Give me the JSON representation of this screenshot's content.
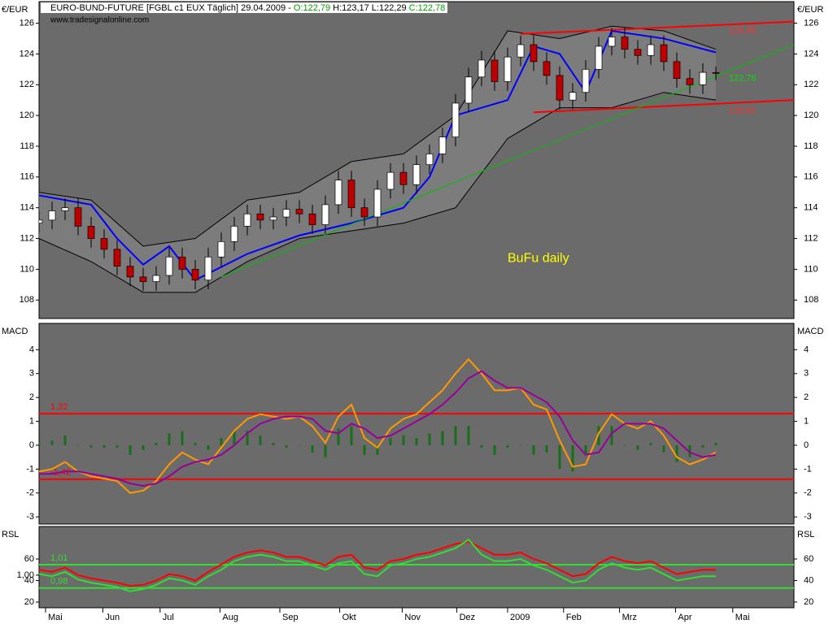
{
  "chart_data": [
    {
      "type": "candlestick",
      "title": "EURO-BUND-FUTURE [FGBL c1 EUX  Täglich] 29.04.2009 -",
      "ohlc_labels": [
        {
          "text": "O:122,79",
          "color": "#00a000"
        },
        {
          "text": "H:123,17",
          "color": "#000000"
        },
        {
          "text": "L:122,29",
          "color": "#000000"
        },
        {
          "text": "C:122,78",
          "color": "#00a000"
        }
      ],
      "subtitle": "www.tradesignalonline.com",
      "ylabel": "€/EUR",
      "xlim": [
        0,
        58
      ],
      "ylim": [
        106.8,
        127.4
      ],
      "yticks": [
        108,
        110,
        112,
        114,
        116,
        118,
        120,
        122,
        124,
        126
      ],
      "up_color": "#ffffff",
      "down_color": "#c00000",
      "x": [
        0,
        1,
        2,
        3,
        4,
        5,
        6,
        7,
        8,
        9,
        10,
        11,
        12,
        13,
        14,
        15,
        16,
        17,
        18,
        19,
        20,
        21,
        22,
        23,
        24,
        25,
        26,
        27,
        28,
        29,
        30,
        31,
        32,
        33,
        34,
        35,
        36,
        37,
        38,
        39,
        40,
        41,
        42,
        43,
        44,
        45,
        46,
        47,
        48,
        49,
        50,
        51,
        52
      ],
      "open": [
        113.0,
        113.2,
        113.8,
        114.0,
        112.8,
        112.0,
        111.3,
        110.2,
        109.5,
        109.2,
        109.6,
        110.8,
        110.0,
        109.3,
        110.8,
        111.8,
        112.8,
        113.6,
        113.2,
        113.4,
        113.9,
        113.6,
        112.9,
        114.2,
        115.8,
        114.0,
        113.4,
        115.2,
        116.3,
        115.5,
        116.8,
        117.5,
        118.6,
        120.8,
        122.5,
        123.6,
        122.2,
        123.8,
        124.6,
        123.5,
        122.6,
        121.0,
        121.5,
        123.0,
        124.5,
        125.1,
        124.3,
        123.9,
        124.6,
        123.5,
        122.4,
        122.0,
        122.79
      ],
      "high": [
        113.8,
        114.4,
        114.6,
        114.6,
        113.4,
        112.6,
        111.9,
        110.8,
        110.1,
        110.2,
        111.4,
        111.4,
        110.6,
        111.4,
        112.4,
        113.4,
        114.2,
        114.2,
        114.0,
        114.5,
        114.5,
        114.2,
        114.8,
        116.4,
        116.4,
        114.6,
        115.8,
        116.9,
        116.9,
        117.4,
        118.1,
        119.2,
        121.4,
        123.1,
        124.2,
        124.2,
        124.4,
        125.2,
        125.2,
        124.1,
        123.2,
        122.1,
        123.6,
        125.1,
        125.7,
        125.7,
        124.9,
        125.2,
        125.2,
        124.1,
        123.0,
        123.4,
        123.17
      ],
      "low": [
        112.4,
        112.6,
        113.2,
        112.2,
        111.4,
        110.7,
        109.6,
        108.9,
        108.6,
        108.6,
        109.0,
        109.4,
        108.7,
        108.7,
        110.2,
        111.2,
        112.2,
        112.6,
        112.6,
        112.8,
        113.0,
        112.3,
        112.3,
        113.6,
        113.4,
        112.8,
        112.8,
        114.6,
        114.9,
        114.9,
        116.2,
        116.9,
        118.0,
        120.2,
        121.9,
        121.6,
        121.6,
        123.2,
        122.9,
        122.0,
        120.4,
        120.4,
        120.9,
        122.4,
        123.9,
        123.7,
        123.3,
        123.3,
        122.9,
        121.8,
        121.4,
        121.4,
        122.29
      ],
      "close": [
        113.2,
        113.8,
        114.0,
        112.8,
        112.0,
        111.3,
        110.2,
        109.5,
        109.2,
        109.6,
        110.8,
        110.0,
        109.3,
        110.8,
        111.8,
        112.8,
        113.6,
        113.2,
        113.4,
        113.9,
        113.6,
        112.9,
        114.2,
        115.8,
        114.0,
        113.4,
        115.2,
        116.3,
        115.5,
        116.8,
        117.5,
        118.6,
        120.8,
        122.5,
        123.6,
        122.2,
        123.8,
        124.6,
        123.5,
        122.6,
        121.0,
        121.5,
        123.0,
        124.5,
        125.1,
        124.3,
        123.9,
        124.6,
        123.5,
        122.4,
        122.0,
        122.8,
        122.78
      ],
      "series": [
        {
          "color": "#000000",
          "width": 1,
          "x": [
            0,
            4,
            8,
            12,
            16,
            20,
            24,
            28,
            32,
            36,
            40,
            44,
            48,
            52
          ],
          "values": [
            115.0,
            114.5,
            111.5,
            112.0,
            114.5,
            115.0,
            117.0,
            117.5,
            120.0,
            125.5,
            125.0,
            125.8,
            125.5,
            124.3
          ]
        },
        {
          "color": "#000000",
          "width": 1,
          "x": [
            0,
            4,
            8,
            12,
            16,
            20,
            24,
            28,
            32,
            36,
            40,
            44,
            48,
            52
          ],
          "values": [
            112.0,
            110.5,
            108.5,
            108.5,
            110.5,
            112.0,
            112.5,
            113.0,
            114.0,
            118.5,
            120.5,
            120.5,
            121.5,
            121.0
          ]
        },
        {
          "color": "#0000ff",
          "width": 2,
          "x": [
            0,
            4,
            6,
            8,
            10,
            12,
            16,
            20,
            24,
            28,
            30,
            32,
            36,
            38,
            40,
            42,
            44,
            48,
            52
          ],
          "values": [
            114.8,
            114.2,
            112.0,
            110.3,
            111.5,
            109.3,
            111.0,
            112.2,
            113.0,
            114.0,
            116.0,
            120.0,
            121.0,
            124.5,
            124.0,
            121.5,
            125.5,
            125.0,
            124.1
          ]
        },
        {
          "color": "#ff0000",
          "width": 2,
          "x": [
            37,
            58
          ],
          "values": [
            125.3,
            126.1
          ]
        },
        {
          "color": "#ff0000",
          "width": 2,
          "x": [
            38,
            58
          ],
          "values": [
            120.2,
            121.0
          ]
        },
        {
          "color": "#00c000",
          "width": 1,
          "x": [
            14,
            58
          ],
          "values": [
            109.5,
            124.6
          ]
        }
      ],
      "annotations": [
        {
          "x": 53,
          "value": 125.5,
          "label": "125,95",
          "color": "#ff3030"
        },
        {
          "x": 53,
          "value": 120.3,
          "label": "120,81",
          "color": "#ff3030"
        },
        {
          "x": 53,
          "value": 122.4,
          "label": "122,76",
          "color": "#00e000"
        },
        {
          "x": 36,
          "value": 110.7,
          "label": "BuFu daily",
          "color": "#ffff00"
        }
      ]
    },
    {
      "type": "macd",
      "ylabel": "MACD",
      "xlim": [
        0,
        58
      ],
      "ylim": [
        -3.3,
        5.1
      ],
      "yticks": [
        4,
        3,
        2,
        1,
        0,
        -1,
        -2,
        -3
      ],
      "x": [
        0,
        1,
        2,
        3,
        4,
        5,
        6,
        7,
        8,
        9,
        10,
        11,
        12,
        13,
        14,
        15,
        16,
        17,
        18,
        19,
        20,
        21,
        22,
        23,
        24,
        25,
        26,
        27,
        28,
        29,
        30,
        31,
        32,
        33,
        34,
        35,
        36,
        37,
        38,
        39,
        40,
        41,
        42,
        43,
        44,
        45,
        46,
        47,
        48,
        49,
        50,
        51,
        52
      ],
      "series": [
        {
          "color": "#1a6e1a",
          "style": "bar",
          "values": [
            0.1,
            0.2,
            0.4,
            0.0,
            -0.1,
            -0.1,
            -0.1,
            -0.4,
            -0.2,
            0.1,
            0.5,
            0.6,
            0.1,
            -0.2,
            0.3,
            0.6,
            0.6,
            0.4,
            0.1,
            -0.1,
            0.0,
            -0.3,
            -0.5,
            0.7,
            0.8,
            -0.4,
            -0.4,
            0.3,
            0.4,
            0.3,
            0.5,
            0.6,
            0.8,
            0.8,
            -0.1,
            -0.4,
            -0.1,
            0.0,
            -0.4,
            -0.3,
            -1.0,
            -1.1,
            -0.4,
            0.8,
            0.8,
            0.0,
            -0.2,
            0.1,
            -0.3,
            -0.7,
            -0.5,
            -0.1,
            0.1
          ]
        },
        {
          "color": "#ff9900",
          "style": "line",
          "values": [
            -1.1,
            -1.0,
            -0.7,
            -1.1,
            -1.3,
            -1.4,
            -1.5,
            -2.0,
            -1.9,
            -1.5,
            -0.8,
            -0.3,
            -0.6,
            -0.8,
            -0.1,
            0.6,
            1.1,
            1.3,
            1.2,
            1.1,
            1.2,
            0.8,
            0.1,
            1.2,
            1.7,
            0.3,
            -0.1,
            0.7,
            1.1,
            1.3,
            1.8,
            2.3,
            3.0,
            3.6,
            3.0,
            2.3,
            2.3,
            2.4,
            1.7,
            1.5,
            0.2,
            -0.9,
            -0.8,
            0.5,
            1.3,
            0.9,
            0.7,
            1.0,
            0.4,
            -0.5,
            -0.8,
            -0.6,
            -0.3
          ]
        },
        {
          "color": "#990099",
          "style": "line",
          "values": [
            -1.2,
            -1.2,
            -1.1,
            -1.1,
            -1.2,
            -1.3,
            -1.4,
            -1.6,
            -1.7,
            -1.6,
            -1.3,
            -0.9,
            -0.7,
            -0.6,
            -0.4,
            0.0,
            0.5,
            0.9,
            1.1,
            1.2,
            1.2,
            1.1,
            0.6,
            0.5,
            0.9,
            0.7,
            0.3,
            0.4,
            0.7,
            1.0,
            1.3,
            1.7,
            2.2,
            2.8,
            3.1,
            2.7,
            2.4,
            2.4,
            2.1,
            1.8,
            1.2,
            0.2,
            -0.4,
            -0.3,
            0.5,
            0.9,
            0.9,
            0.9,
            0.7,
            0.2,
            -0.3,
            -0.5,
            -0.4
          ]
        }
      ],
      "hlines": [
        {
          "value": 1.32,
          "label": "1,32",
          "color": "#ff0000"
        },
        {
          "value": -1.42,
          "label": "-1,42",
          "color": "#ff0000"
        }
      ]
    },
    {
      "type": "rsi",
      "ylabel": "RSL",
      "xlim": [
        0,
        58
      ],
      "ylim": [
        14.7,
        90.2
      ],
      "yticks": [
        60,
        40,
        20
      ],
      "left_ticks": [
        {
          "value": 45,
          "label": "1,00"
        }
      ],
      "x": [
        0,
        1,
        2,
        3,
        4,
        5,
        6,
        7,
        8,
        9,
        10,
        11,
        12,
        13,
        14,
        15,
        16,
        17,
        18,
        19,
        20,
        21,
        22,
        23,
        24,
        25,
        26,
        27,
        28,
        29,
        30,
        31,
        32,
        33,
        34,
        35,
        36,
        37,
        38,
        39,
        40,
        41,
        42,
        43,
        44,
        45,
        46,
        47,
        48,
        49,
        50,
        51,
        52
      ],
      "series": [
        {
          "color": "#ff0000",
          "style": "line",
          "values": [
            50,
            48,
            52,
            45,
            42,
            40,
            38,
            35,
            36,
            40,
            46,
            44,
            40,
            48,
            55,
            62,
            66,
            68,
            66,
            62,
            62,
            58,
            54,
            62,
            64,
            52,
            50,
            58,
            60,
            64,
            66,
            70,
            74,
            76,
            70,
            64,
            64,
            66,
            60,
            56,
            50,
            44,
            46,
            56,
            62,
            58,
            56,
            58,
            52,
            46,
            48,
            50,
            50
          ]
        },
        {
          "color": "#33dd33",
          "style": "line",
          "values": [
            46,
            44,
            48,
            41,
            38,
            36,
            34,
            30,
            32,
            36,
            42,
            40,
            36,
            44,
            50,
            58,
            62,
            64,
            62,
            58,
            58,
            54,
            50,
            56,
            58,
            46,
            44,
            54,
            56,
            60,
            62,
            66,
            70,
            78,
            64,
            58,
            58,
            60,
            54,
            50,
            44,
            38,
            40,
            50,
            56,
            52,
            50,
            52,
            46,
            40,
            42,
            44,
            44
          ]
        }
      ],
      "hlines": [
        {
          "value": 54.7,
          "label": "1,01",
          "color": "#33dd33"
        },
        {
          "value": 33,
          "label": "0,98",
          "color": "#33dd33"
        }
      ],
      "xticks": [
        {
          "value": 0.5,
          "label": "Mai"
        },
        {
          "value": 4.9,
          "label": "Jun"
        },
        {
          "value": 9.3,
          "label": "Jul"
        },
        {
          "value": 13.9,
          "label": "Aug"
        },
        {
          "value": 18.5,
          "label": "Sep"
        },
        {
          "value": 23.1,
          "label": "Okt"
        },
        {
          "value": 27.9,
          "label": "Nov"
        },
        {
          "value": 32.1,
          "label": "Dez"
        },
        {
          "value": 36,
          "label": "2009"
        },
        {
          "value": 40.3,
          "label": "Feb"
        },
        {
          "value": 44.6,
          "label": "Mrz"
        },
        {
          "value": 48.9,
          "label": "Apr"
        },
        {
          "value": 53.3,
          "label": "Mai"
        }
      ]
    }
  ]
}
